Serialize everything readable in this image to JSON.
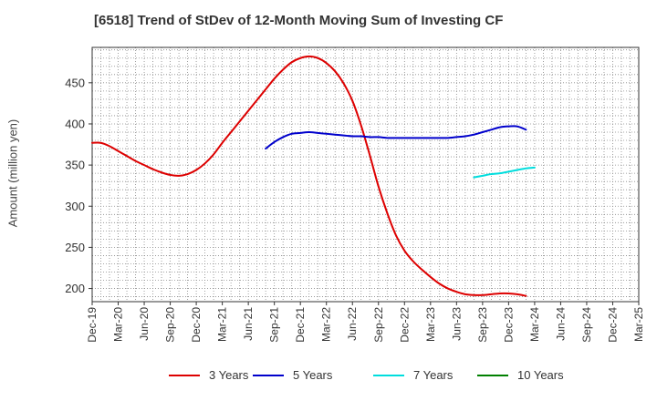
{
  "chart_data": {
    "type": "line",
    "title": "[6518]  Trend of StDev of 12-Month Moving Sum of Investing CF",
    "ylabel": "Amount (million yen)",
    "xlabel": "",
    "ylim": [
      184,
      493
    ],
    "yticks": [
      200,
      250,
      300,
      350,
      400,
      450
    ],
    "x_range": [
      "2019-12",
      "2025-03"
    ],
    "x_ticks": [
      "Dec-19",
      "Mar-20",
      "Jun-20",
      "Sep-20",
      "Dec-20",
      "Mar-21",
      "Jun-21",
      "Sep-21",
      "Dec-21",
      "Mar-22",
      "Jun-22",
      "Sep-22",
      "Dec-22",
      "Mar-23",
      "Jun-23",
      "Sep-23",
      "Dec-23",
      "Mar-24",
      "Jun-24",
      "Sep-24",
      "Dec-24",
      "Mar-25"
    ],
    "grid": true,
    "legend_position": "bottom",
    "series": [
      {
        "name": "3 Years",
        "color": "#dd0000",
        "points": [
          [
            "2019-12",
            377
          ],
          [
            "2020-01",
            377
          ],
          [
            "2020-02",
            373
          ],
          [
            "2020-03",
            367
          ],
          [
            "2020-04",
            361
          ],
          [
            "2020-05",
            355
          ],
          [
            "2020-06",
            350
          ],
          [
            "2020-07",
            345
          ],
          [
            "2020-08",
            341
          ],
          [
            "2020-09",
            338
          ],
          [
            "2020-10",
            337
          ],
          [
            "2020-11",
            339
          ],
          [
            "2020-12",
            344
          ],
          [
            "2021-01",
            352
          ],
          [
            "2021-02",
            363
          ],
          [
            "2021-03",
            377
          ],
          [
            "2021-04",
            390
          ],
          [
            "2021-05",
            403
          ],
          [
            "2021-06",
            416
          ],
          [
            "2021-07",
            429
          ],
          [
            "2021-08",
            442
          ],
          [
            "2021-09",
            455
          ],
          [
            "2021-10",
            466
          ],
          [
            "2021-11",
            475
          ],
          [
            "2021-12",
            480
          ],
          [
            "2022-01",
            482
          ],
          [
            "2022-02",
            480
          ],
          [
            "2022-03",
            474
          ],
          [
            "2022-04",
            464
          ],
          [
            "2022-05",
            449
          ],
          [
            "2022-06",
            428
          ],
          [
            "2022-07",
            398
          ],
          [
            "2022-08",
            362
          ],
          [
            "2022-09",
            324
          ],
          [
            "2022-10",
            292
          ],
          [
            "2022-11",
            265
          ],
          [
            "2022-12",
            246
          ],
          [
            "2023-01",
            233
          ],
          [
            "2023-02",
            223
          ],
          [
            "2023-03",
            214
          ],
          [
            "2023-04",
            206
          ],
          [
            "2023-05",
            200
          ],
          [
            "2023-06",
            196
          ],
          [
            "2023-07",
            193
          ],
          [
            "2023-08",
            192
          ],
          [
            "2023-09",
            192
          ],
          [
            "2023-10",
            193
          ],
          [
            "2023-11",
            194
          ],
          [
            "2023-12",
            194
          ],
          [
            "2024-01",
            193
          ],
          [
            "2024-02",
            191
          ]
        ]
      },
      {
        "name": "5 Years",
        "color": "#0000cc",
        "points": [
          [
            "2021-08",
            370
          ],
          [
            "2021-09",
            378
          ],
          [
            "2021-10",
            384
          ],
          [
            "2021-11",
            388
          ],
          [
            "2021-12",
            389
          ],
          [
            "2022-01",
            390
          ],
          [
            "2022-02",
            389
          ],
          [
            "2022-03",
            388
          ],
          [
            "2022-04",
            387
          ],
          [
            "2022-05",
            386
          ],
          [
            "2022-06",
            385
          ],
          [
            "2022-07",
            385
          ],
          [
            "2022-08",
            384
          ],
          [
            "2022-09",
            384
          ],
          [
            "2022-10",
            383
          ],
          [
            "2022-11",
            383
          ],
          [
            "2022-12",
            383
          ],
          [
            "2023-01",
            383
          ],
          [
            "2023-02",
            383
          ],
          [
            "2023-03",
            383
          ],
          [
            "2023-04",
            383
          ],
          [
            "2023-05",
            383
          ],
          [
            "2023-06",
            384
          ],
          [
            "2023-07",
            385
          ],
          [
            "2023-08",
            387
          ],
          [
            "2023-09",
            390
          ],
          [
            "2023-10",
            393
          ],
          [
            "2023-11",
            396
          ],
          [
            "2023-12",
            397
          ],
          [
            "2024-01",
            397
          ],
          [
            "2024-02",
            393
          ]
        ]
      },
      {
        "name": "7 Years",
        "color": "#00dddd",
        "points": [
          [
            "2023-08",
            335
          ],
          [
            "2023-09",
            337
          ],
          [
            "2023-10",
            339
          ],
          [
            "2023-11",
            340
          ],
          [
            "2023-12",
            342
          ],
          [
            "2024-01",
            344
          ],
          [
            "2024-02",
            346
          ],
          [
            "2024-03",
            347
          ]
        ]
      },
      {
        "name": "10 Years",
        "color": "#008000",
        "points": []
      }
    ]
  }
}
